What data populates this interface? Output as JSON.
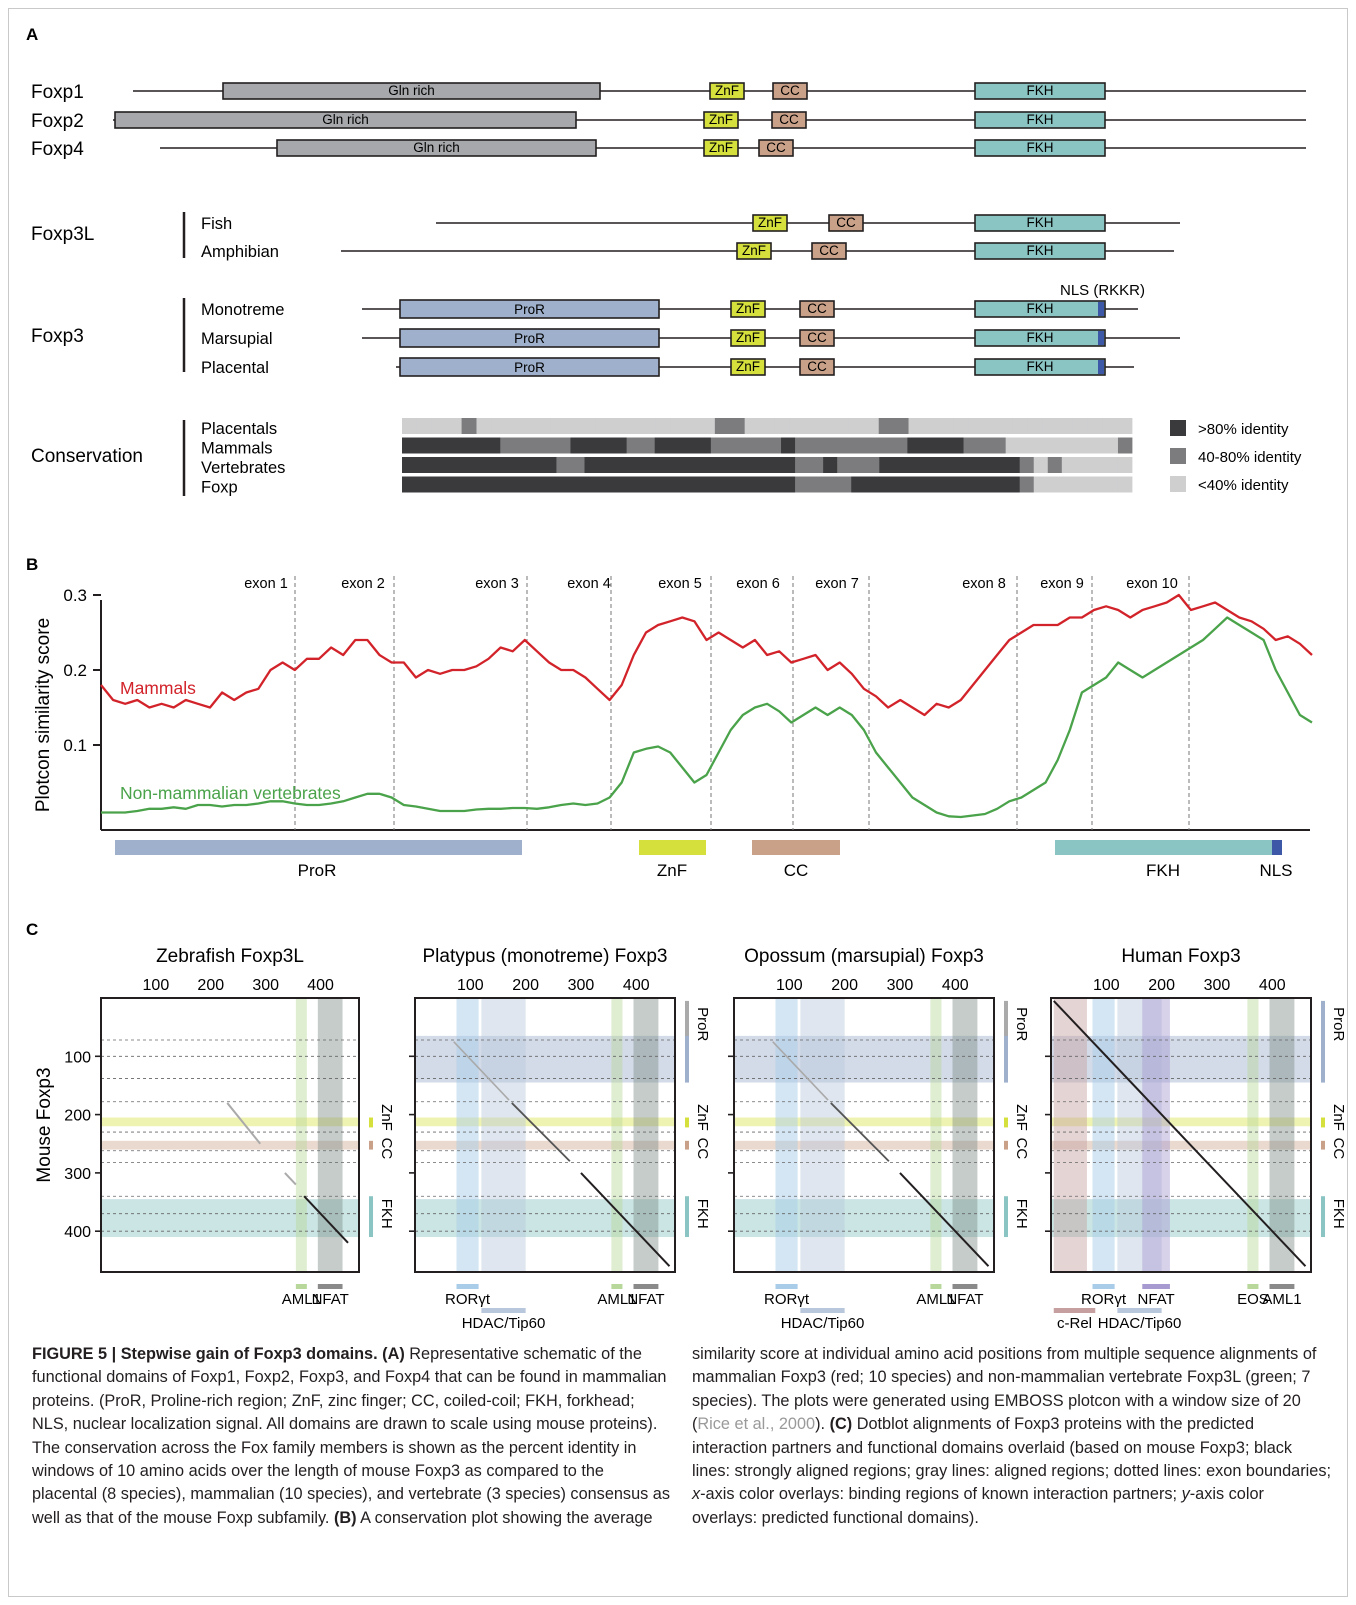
{
  "panelA": {
    "letter": "A",
    "proteins": [
      {
        "name": "Foxp1",
        "domain_label": "Gln rich"
      },
      {
        "name": "Foxp2",
        "domain_label": "Gln rich"
      },
      {
        "name": "Foxp4",
        "domain_label": "Gln rich"
      }
    ],
    "foxp3l": {
      "group": "Foxp3L",
      "rows": [
        "Fish",
        "Amphibian"
      ]
    },
    "foxp3": {
      "group": "Foxp3",
      "rows": [
        "Monotreme",
        "Marsupial",
        "Placental"
      ],
      "nls_label": "NLS (RKKR)",
      "pror_label": "ProR"
    },
    "domain_labels": {
      "znf": "ZnF",
      "cc": "CC",
      "fkh": "FKH"
    },
    "conservation": {
      "group": "Conservation",
      "rows": [
        "Placentals",
        "Mammals",
        "Vertebrates",
        "Foxp"
      ],
      "legend": [
        {
          "label": ">80% identity",
          "color": "#3a3a3c"
        },
        {
          "label": "40-80% identity",
          "color": "#7c7c7e"
        },
        {
          "label": "<40% identity",
          "color": "#cfcfd0"
        }
      ]
    },
    "colors": {
      "gln": "#a6a8ab",
      "znf": "#d6e03d",
      "cc": "#c9a088",
      "fkh": "#8bc5c3",
      "pror": "#9eb0cb",
      "nls": "#3e58a8"
    }
  },
  "panelB": {
    "letter": "B",
    "chart_data": {
      "type": "line",
      "xlabel": "",
      "ylabel": "Plotcon similarity score",
      "yticks": [
        "0.3",
        "0.2",
        "0.1"
      ],
      "ylim": [
        0,
        0.3
      ],
      "exons": [
        "exon 1",
        "exon 2",
        "exon 3",
        "exon 4",
        "exon 5",
        "exon 6",
        "exon 7",
        "exon 8",
        "exon 9",
        "exon 10"
      ],
      "series": [
        {
          "name": "Mammals",
          "color": "#d2232a",
          "x": [
            0,
            10,
            20,
            30,
            40,
            50,
            60,
            70,
            80,
            90,
            100,
            110,
            120,
            130,
            140,
            150,
            160,
            170,
            180,
            190,
            200,
            210,
            220,
            230,
            240,
            250,
            260,
            270,
            280,
            290,
            300,
            310,
            320,
            330,
            340,
            350,
            360,
            370,
            380,
            390,
            400,
            410,
            420,
            430,
            440,
            450,
            460,
            470,
            480,
            490,
            500,
            510,
            520,
            530,
            540,
            550,
            560,
            570,
            580,
            590,
            600,
            610,
            620,
            630,
            640,
            650,
            660,
            670,
            680,
            690,
            700,
            710,
            720,
            730,
            740,
            750,
            760,
            770,
            780,
            790,
            800,
            810,
            820,
            830,
            840,
            850,
            860,
            870,
            880,
            890,
            900,
            910,
            920,
            930,
            940,
            950,
            960,
            970,
            980,
            990,
            1000
          ],
          "y": [
            0.18,
            0.16,
            0.155,
            0.16,
            0.15,
            0.155,
            0.15,
            0.16,
            0.155,
            0.15,
            0.17,
            0.16,
            0.17,
            0.175,
            0.2,
            0.21,
            0.2,
            0.215,
            0.215,
            0.23,
            0.22,
            0.24,
            0.24,
            0.22,
            0.21,
            0.21,
            0.19,
            0.2,
            0.195,
            0.2,
            0.2,
            0.205,
            0.215,
            0.23,
            0.225,
            0.24,
            0.225,
            0.21,
            0.2,
            0.2,
            0.19,
            0.175,
            0.16,
            0.18,
            0.22,
            0.25,
            0.26,
            0.265,
            0.27,
            0.265,
            0.24,
            0.25,
            0.24,
            0.23,
            0.24,
            0.22,
            0.225,
            0.21,
            0.215,
            0.22,
            0.2,
            0.21,
            0.195,
            0.175,
            0.165,
            0.15,
            0.16,
            0.15,
            0.14,
            0.155,
            0.15,
            0.16,
            0.18,
            0.2,
            0.22,
            0.24,
            0.25,
            0.26,
            0.26,
            0.26,
            0.27,
            0.27,
            0.28,
            0.285,
            0.28,
            0.27,
            0.28,
            0.285,
            0.29,
            0.3,
            0.28,
            0.285,
            0.29,
            0.28,
            0.27,
            0.265,
            0.255,
            0.24,
            0.245,
            0.235,
            0.22
          ]
        },
        {
          "name": "Non-mammalian vertebrates",
          "color": "#4aa34a",
          "x": [
            0,
            10,
            20,
            30,
            40,
            50,
            60,
            70,
            80,
            90,
            100,
            110,
            120,
            130,
            140,
            150,
            160,
            170,
            180,
            190,
            200,
            210,
            220,
            230,
            240,
            250,
            260,
            270,
            280,
            290,
            300,
            310,
            320,
            330,
            340,
            350,
            360,
            370,
            380,
            390,
            400,
            410,
            420,
            430,
            440,
            450,
            460,
            470,
            480,
            490,
            500,
            510,
            520,
            530,
            540,
            550,
            560,
            570,
            580,
            590,
            600,
            610,
            620,
            630,
            640,
            650,
            660,
            670,
            680,
            690,
            700,
            710,
            720,
            730,
            740,
            750,
            760,
            770,
            780,
            790,
            800,
            810,
            820,
            830,
            840,
            850,
            860,
            870,
            880,
            890,
            900,
            910,
            920,
            930,
            940,
            950,
            960,
            970,
            980,
            990,
            1000
          ],
          "y": [
            0.01,
            0.01,
            0.01,
            0.012,
            0.015,
            0.015,
            0.017,
            0.015,
            0.02,
            0.02,
            0.018,
            0.02,
            0.02,
            0.022,
            0.025,
            0.025,
            0.022,
            0.02,
            0.02,
            0.022,
            0.025,
            0.03,
            0.035,
            0.035,
            0.03,
            0.02,
            0.018,
            0.015,
            0.012,
            0.012,
            0.012,
            0.014,
            0.015,
            0.015,
            0.016,
            0.016,
            0.015,
            0.017,
            0.02,
            0.022,
            0.02,
            0.022,
            0.03,
            0.05,
            0.09,
            0.095,
            0.098,
            0.09,
            0.07,
            0.05,
            0.06,
            0.09,
            0.12,
            0.14,
            0.15,
            0.155,
            0.145,
            0.13,
            0.14,
            0.15,
            0.14,
            0.15,
            0.14,
            0.12,
            0.09,
            0.07,
            0.05,
            0.03,
            0.02,
            0.01,
            0.005,
            0.004,
            0.006,
            0.008,
            0.015,
            0.025,
            0.03,
            0.04,
            0.05,
            0.08,
            0.12,
            0.17,
            0.18,
            0.19,
            0.21,
            0.2,
            0.19,
            0.2,
            0.21,
            0.22,
            0.23,
            0.24,
            0.255,
            0.27,
            0.26,
            0.25,
            0.24,
            0.2,
            0.17,
            0.14,
            0.13
          ]
        }
      ]
    },
    "domain_bar_labels": [
      "ProR",
      "ZnF",
      "CC",
      "FKH",
      "NLS"
    ]
  },
  "panelC": {
    "letter": "C",
    "ylabel": "Mouse Foxp3",
    "plots": [
      {
        "title": "Zebrafish Foxp3L",
        "xticks": [
          "100",
          "200",
          "300",
          "400"
        ],
        "partners": [
          "AML1",
          "NFAT"
        ]
      },
      {
        "title": "Platypus (monotreme) Foxp3",
        "xticks": [
          "100",
          "200",
          "300",
          "400"
        ],
        "partners": [
          "RORγt",
          "AML1",
          "NFAT",
          "HDAC/Tip60"
        ]
      },
      {
        "title": "Opossum (marsupial) Foxp3",
        "xticks": [
          "100",
          "200",
          "300",
          "400"
        ],
        "partners": [
          "RORγt",
          "AML1",
          "NFAT",
          "HDAC/Tip60"
        ]
      },
      {
        "title": "Human Foxp3",
        "xticks": [
          "100",
          "200",
          "300",
          "400"
        ],
        "partners": [
          "RORγt",
          "EOS",
          "AML1",
          "NFAT",
          "c-Rel",
          "HDAC/Tip60"
        ]
      }
    ],
    "yticks": [
      "100",
      "200",
      "300",
      "400"
    ],
    "side_domains": [
      "ProR",
      "ZnF",
      "CC",
      "FKH"
    ]
  },
  "caption": {
    "label": "FIGURE 5 | Stepwise gain of Foxp3 domains.",
    "left_text": [
      {
        "b": "(A)",
        "t": " Representative schematic of the functional domains of Foxp1, Foxp2, Foxp3, and Foxp4 that can be found in mammalian proteins. (ProR, Proline-rich region; ZnF, zinc finger; CC, coiled-coil; FKH, forkhead; NLS, nuclear localization signal. All domains are drawn to scale using mouse proteins). The conservation across the Fox family members is shown as the percent identity in windows of 10 amino acids over the length of mouse Foxp3 as compared to the placental (8 species), mammalian (10 species), and vertebrate (3 species) consensus as well as that of the mouse Foxp subfamily. "
      },
      {
        "b": "(B)",
        "t": " A conservation plot showing the average"
      }
    ],
    "right_1": "similarity score at individual amino acid positions from multiple sequence alignments of mammalian Foxp3 (red; 10 species) and non-mammalian vertebrate Foxp3L (green; 7 species). The plots were generated using EMBOSS plotcon with a window size of 20 (",
    "ref": "Rice et al., 2000",
    "right_2": "). ",
    "c_label": "(C)",
    "right_3": " Dotblot alignments of Foxp3 proteins with the predicted interaction partners and functional domains overlaid (based on mouse Foxp3; black lines: strongly aligned regions; gray lines: aligned regions; dotted lines: exon boundaries; ",
    "xaxis_word": "x",
    "right_4": "-axis color overlays: binding regions of known interaction partners; ",
    "yaxis_word": "y",
    "right_5": "-axis color overlays: predicted functional domains)."
  }
}
